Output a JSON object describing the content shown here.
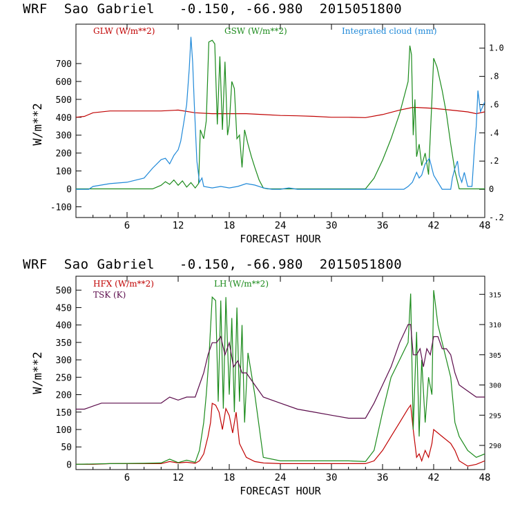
{
  "charts": [
    {
      "header": "WRF  Sao Gabriel   -0.150, -66.980  2015051800",
      "xlabel": "FORECAST HOUR",
      "ylabel": "W/m**2",
      "legend": [
        {
          "label": "GLW (W/m**2)",
          "color": "#c00000"
        },
        {
          "label": "GSW (W/m**2)",
          "color": "#1a8a1a"
        },
        {
          "label": "Integrated cloud (mm)",
          "color": "#1e88d8"
        }
      ]
    },
    {
      "header": "WRF  Sao Gabriel   -0.150, -66.980  2015051800",
      "xlabel": "FORECAST HOUR",
      "ylabel": "W/m**2",
      "legend": [
        {
          "label": "HFX (W/m**2)",
          "color": "#c00000"
        },
        {
          "label": "LH  (W/m**2)",
          "color": "#1a8a1a"
        },
        {
          "label": "TSK (K)",
          "color": "#5a0a4a"
        }
      ]
    }
  ],
  "chart_data": [
    {
      "type": "line",
      "title": "WRF  Sao Gabriel   -0.150, -66.980  2015051800",
      "xlabel": "FORECAST HOUR",
      "ylabel": "W/m**2",
      "xlim": [
        0,
        48
      ],
      "ylim": [
        -160,
        920
      ],
      "xticks": [
        "6",
        "12",
        "18",
        "24",
        "30",
        "36",
        "42",
        "48"
      ],
      "yticks": [
        "-100",
        "0",
        "100",
        "200",
        "300",
        "400",
        "500",
        "600",
        "700"
      ],
      "y2lim": [
        -0.2,
        1.17
      ],
      "y2ticks": [
        "-.2",
        "0",
        ".2",
        ".4",
        ".6",
        ".8",
        "1.0"
      ],
      "grid": false,
      "series": [
        {
          "name": "GLW (W/m**2)",
          "color": "#c00000",
          "axis": "left",
          "x": [
            0,
            1,
            2,
            4,
            6,
            8,
            10,
            12,
            14,
            16,
            18,
            20,
            22,
            24,
            26,
            28,
            30,
            32,
            34,
            36,
            38,
            39.5,
            40,
            42,
            44,
            46,
            47,
            48
          ],
          "y": [
            400,
            405,
            425,
            435,
            435,
            435,
            435,
            440,
            425,
            420,
            420,
            420,
            415,
            410,
            408,
            405,
            400,
            400,
            398,
            415,
            440,
            455,
            455,
            450,
            440,
            430,
            420,
            430
          ]
        },
        {
          "name": "GSW (W/m**2)",
          "color": "#1a8a1a",
          "axis": "left",
          "x": [
            0,
            9,
            10,
            10.5,
            11,
            11.5,
            12,
            12.5,
            13,
            13.5,
            14,
            14.4,
            14.6,
            15,
            15.3,
            15.6,
            16,
            16.3,
            16.6,
            16.9,
            17.2,
            17.5,
            17.8,
            18,
            18.3,
            18.6,
            18.9,
            19.2,
            19.5,
            19.8,
            20.2,
            20.6,
            21,
            21.5,
            22,
            22.5,
            34,
            35,
            36,
            37,
            38,
            39,
            39.2,
            39.4,
            39.6,
            39.8,
            40,
            40.3,
            40.6,
            41,
            41.4,
            41.8,
            42,
            42.4,
            43,
            43.5,
            44,
            44.5,
            45,
            48
          ],
          "y": [
            0,
            0,
            20,
            40,
            25,
            50,
            20,
            45,
            10,
            35,
            5,
            30,
            330,
            280,
            380,
            820,
            830,
            810,
            360,
            740,
            330,
            710,
            300,
            360,
            600,
            560,
            280,
            300,
            120,
            330,
            250,
            180,
            120,
            50,
            5,
            0,
            0,
            60,
            160,
            280,
            420,
            600,
            800,
            750,
            300,
            500,
            180,
            250,
            130,
            200,
            80,
            500,
            730,
            680,
            550,
            420,
            250,
            100,
            0,
            0
          ]
        },
        {
          "name": "Integrated cloud (mm)",
          "color": "#1e88d8",
          "axis": "right",
          "x": [
            0,
            1.5,
            2,
            4,
            6,
            8,
            9,
            10,
            10.5,
            11,
            11.5,
            12,
            12.3,
            12.6,
            13,
            13.3,
            13.5,
            13.7,
            13.9,
            14.2,
            14.5,
            14.8,
            15,
            16,
            17,
            18,
            19,
            20,
            21,
            22,
            23,
            24,
            25,
            26,
            28,
            30,
            32,
            34,
            36,
            37,
            38,
            38.5,
            39,
            39.5,
            40,
            40.3,
            40.6,
            41,
            41.5,
            42,
            43,
            43.5,
            44,
            44.2,
            44.5,
            44.8,
            45,
            45.3,
            45.6,
            46,
            46.5,
            46.8,
            47,
            47.2,
            47.5,
            48
          ],
          "y": [
            0,
            0,
            0.02,
            0.04,
            0.05,
            0.08,
            0.15,
            0.21,
            0.22,
            0.18,
            0.24,
            0.28,
            0.34,
            0.45,
            0.6,
            0.85,
            1.08,
            0.9,
            0.6,
            0.2,
            0.05,
            0.08,
            0.02,
            0.01,
            0.02,
            0.01,
            0.02,
            0.04,
            0.03,
            0.01,
            0,
            0,
            0.01,
            0,
            0,
            0,
            0,
            0,
            0,
            0,
            0,
            0,
            0.02,
            0.05,
            0.12,
            0.08,
            0.1,
            0.18,
            0.22,
            0.1,
            0,
            0,
            0,
            0.08,
            0.15,
            0.2,
            0.1,
            0.05,
            0.12,
            0.02,
            0.02,
            0.3,
            0.45,
            0.7,
            0.55,
            0.62
          ]
        }
      ]
    },
    {
      "type": "line",
      "title": "WRF  Sao Gabriel   -0.150, -66.980  2015051800",
      "xlabel": "FORECAST HOUR",
      "ylabel": "W/m**2",
      "xlim": [
        0,
        48
      ],
      "ylim": [
        -15,
        540
      ],
      "xticks": [
        "6",
        "12",
        "18",
        "24",
        "30",
        "36",
        "42",
        "48"
      ],
      "yticks": [
        "0",
        "50",
        "100",
        "150",
        "200",
        "250",
        "300",
        "350",
        "400",
        "450",
        "500"
      ],
      "y2lim": [
        286,
        318
      ],
      "y2ticks": [
        "290",
        "295",
        "300",
        "305",
        "310",
        "315"
      ],
      "grid": false,
      "series": [
        {
          "name": "HFX (W/m**2)",
          "color": "#c00000",
          "axis": "left",
          "x": [
            0,
            2,
            4,
            6,
            8,
            10,
            11,
            12,
            13,
            14,
            14.5,
            15,
            15.5,
            15.8,
            16,
            16.4,
            16.8,
            17.2,
            17.6,
            18,
            18.4,
            18.8,
            19.2,
            19.6,
            20,
            21,
            22,
            24,
            28,
            32,
            34,
            35,
            36,
            37,
            38,
            39,
            39.3,
            39.6,
            40,
            40.3,
            40.6,
            41,
            41.4,
            41.8,
            42,
            43,
            44,
            44.5,
            45,
            46,
            47,
            48
          ],
          "y": [
            0,
            0,
            2,
            2,
            2,
            2,
            8,
            4,
            6,
            3,
            10,
            30,
            80,
            120,
            175,
            170,
            150,
            100,
            160,
            140,
            90,
            150,
            60,
            40,
            20,
            8,
            4,
            2,
            2,
            2,
            2,
            10,
            40,
            80,
            120,
            160,
            170,
            100,
            20,
            30,
            10,
            40,
            20,
            60,
            100,
            80,
            60,
            40,
            10,
            -5,
            0,
            10
          ]
        },
        {
          "name": "LH  (W/m**2)",
          "color": "#1a8a1a",
          "axis": "left",
          "x": [
            0,
            4,
            8,
            10,
            11,
            12,
            13,
            14,
            14.5,
            15,
            15.3,
            15.6,
            16,
            16.4,
            16.7,
            17,
            17.3,
            17.6,
            18,
            18.3,
            18.6,
            18.9,
            19.2,
            19.5,
            19.8,
            20.2,
            21,
            22,
            24,
            28,
            32,
            34,
            35,
            36,
            37,
            38,
            39,
            39.3,
            39.6,
            40,
            40.3,
            40.6,
            41,
            41.4,
            41.8,
            42,
            42.5,
            43,
            43.5,
            44,
            44.5,
            45,
            46,
            47,
            48
          ],
          "y": [
            0,
            2,
            3,
            4,
            15,
            5,
            12,
            6,
            40,
            120,
            200,
            300,
            480,
            470,
            180,
            470,
            160,
            480,
            200,
            420,
            150,
            450,
            180,
            400,
            120,
            320,
            200,
            20,
            10,
            10,
            10,
            8,
            40,
            150,
            250,
            300,
            350,
            490,
            100,
            380,
            80,
            300,
            120,
            250,
            200,
            500,
            400,
            350,
            300,
            250,
            120,
            80,
            40,
            20,
            30
          ]
        },
        {
          "name": "TSK (K)",
          "color": "#5a0a4a",
          "axis": "right",
          "x": [
            0,
            1,
            2,
            3,
            4,
            6,
            8,
            10,
            11,
            12,
            13,
            14,
            14.5,
            15,
            15.5,
            16,
            16.5,
            17,
            17.5,
            18,
            18.5,
            19,
            19.5,
            20,
            21,
            22,
            24,
            26,
            28,
            30,
            32,
            34,
            35,
            36,
            37,
            38,
            39,
            39.3,
            39.6,
            40,
            40.4,
            40.8,
            41.2,
            41.6,
            42,
            42.5,
            43,
            43.5,
            44,
            44.5,
            45,
            46,
            47,
            48
          ],
          "y": [
            296,
            296,
            296.5,
            297,
            297,
            297,
            297,
            297,
            298,
            297.5,
            298,
            298,
            300,
            302,
            305,
            307,
            307,
            308,
            305,
            307,
            303,
            304,
            302,
            302,
            300,
            298,
            297,
            296,
            295.5,
            295,
            294.5,
            294.5,
            297,
            300,
            303,
            307,
            310,
            310,
            305,
            305,
            306,
            303,
            306,
            305,
            308,
            308,
            306,
            306,
            305,
            302,
            300,
            299,
            298,
            298
          ]
        }
      ]
    }
  ]
}
